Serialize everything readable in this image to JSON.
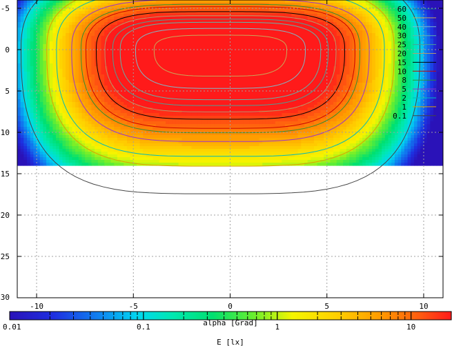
{
  "chart_data": {
    "type": "heatmap",
    "title": "",
    "xlabel": "alpha [Grad]",
    "ylabel": "",
    "xlim": [
      -11,
      11
    ],
    "ylim": [
      -6,
      30
    ],
    "y_reversed": true,
    "grid": true,
    "xticks": [
      -10,
      -5,
      0,
      5,
      10
    ],
    "yticks": [
      -5,
      0,
      5,
      10,
      15,
      20,
      25,
      30
    ],
    "field_extent": {
      "x": [
        -11,
        11
      ],
      "y": [
        -6,
        14
      ]
    },
    "peak": {
      "x": -0.5,
      "y": 0,
      "value": 60
    },
    "contour_levels": [
      {
        "label": "60",
        "value": 60,
        "color": "#006f8f"
      },
      {
        "label": "50",
        "value": 50,
        "color": "#c8a85a"
      },
      {
        "label": "40",
        "value": 40,
        "color": "#7fb9c7"
      },
      {
        "label": "30",
        "value": 30,
        "color": "#62b3a8"
      },
      {
        "label": "25",
        "value": 25,
        "color": "#4c9f94"
      },
      {
        "label": "20",
        "value": 20,
        "color": "#b79a6a"
      },
      {
        "label": "15",
        "value": 15,
        "color": "#000000"
      },
      {
        "label": "10",
        "value": 10,
        "color": "#cc0000"
      },
      {
        "label": "8",
        "value": 8,
        "color": "#2f8f2f"
      },
      {
        "label": "5",
        "value": 5,
        "color": "#9933cc"
      },
      {
        "label": "2",
        "value": 2,
        "color": "#00bbbb"
      },
      {
        "label": "1",
        "value": 1,
        "color": "#dda000"
      },
      {
        "label": "0.1",
        "value": 0.1,
        "color": "#444444"
      }
    ],
    "colorbar": {
      "label": "E [lx]",
      "scale": "log",
      "range": [
        0.01,
        20
      ],
      "tick_labels": [
        "0.01",
        "0.1",
        "1",
        "10"
      ],
      "tick_values": [
        0.01,
        0.1,
        1,
        10
      ]
    }
  }
}
